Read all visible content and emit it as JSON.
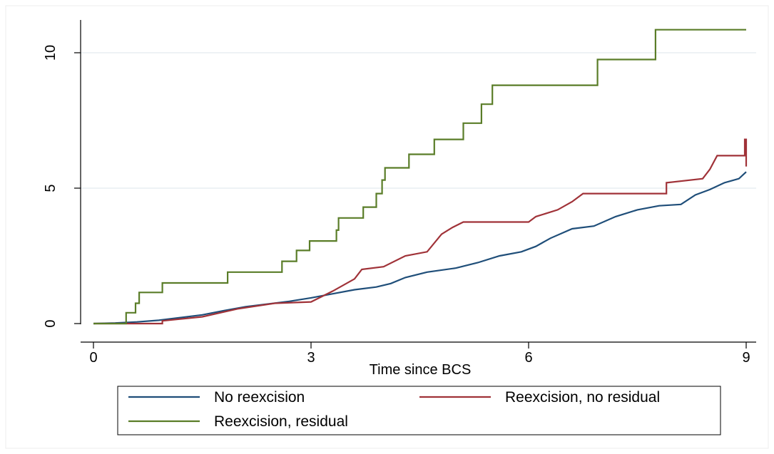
{
  "chart_data": {
    "type": "line",
    "step": true,
    "xlabel": "Time since BCS",
    "ylabel": "",
    "xlim": [
      0,
      9
    ],
    "ylim": [
      0,
      10
    ],
    "x_ticks": [
      "0",
      "3",
      "6",
      "9"
    ],
    "y_ticks": [
      "0",
      "5",
      "10"
    ],
    "grid": "horizontal",
    "legend_position": "bottom",
    "series": [
      {
        "name": "No reexcision",
        "color": "#1f4e79",
        "points": [
          [
            0,
            0
          ],
          [
            0.3,
            0.02
          ],
          [
            0.6,
            0.06
          ],
          [
            0.9,
            0.12
          ],
          [
            1.2,
            0.22
          ],
          [
            1.5,
            0.32
          ],
          [
            1.8,
            0.48
          ],
          [
            2.1,
            0.62
          ],
          [
            2.4,
            0.72
          ],
          [
            2.7,
            0.82
          ],
          [
            3.0,
            0.95
          ],
          [
            3.3,
            1.1
          ],
          [
            3.6,
            1.25
          ],
          [
            3.9,
            1.35
          ],
          [
            4.1,
            1.48
          ],
          [
            4.3,
            1.7
          ],
          [
            4.6,
            1.9
          ],
          [
            5.0,
            2.05
          ],
          [
            5.3,
            2.25
          ],
          [
            5.6,
            2.5
          ],
          [
            5.9,
            2.65
          ],
          [
            6.1,
            2.85
          ],
          [
            6.3,
            3.15
          ],
          [
            6.6,
            3.5
          ],
          [
            6.9,
            3.6
          ],
          [
            7.2,
            3.95
          ],
          [
            7.5,
            4.2
          ],
          [
            7.8,
            4.35
          ],
          [
            8.1,
            4.4
          ],
          [
            8.3,
            4.75
          ],
          [
            8.5,
            4.95
          ],
          [
            8.7,
            5.2
          ],
          [
            8.9,
            5.35
          ],
          [
            9.0,
            5.6
          ]
        ]
      },
      {
        "name": "Reexcision, no residual",
        "color": "#a03238",
        "points": [
          [
            0,
            0
          ],
          [
            0.95,
            0
          ],
          [
            0.95,
            0.1
          ],
          [
            1.5,
            0.25
          ],
          [
            2.0,
            0.55
          ],
          [
            2.5,
            0.75
          ],
          [
            3.0,
            0.8
          ],
          [
            3.3,
            1.2
          ],
          [
            3.6,
            1.65
          ],
          [
            3.7,
            2.0
          ],
          [
            4.0,
            2.1
          ],
          [
            4.3,
            2.5
          ],
          [
            4.6,
            2.65
          ],
          [
            4.8,
            3.3
          ],
          [
            4.95,
            3.55
          ],
          [
            5.1,
            3.75
          ],
          [
            6.0,
            3.75
          ],
          [
            6.1,
            3.95
          ],
          [
            6.4,
            4.2
          ],
          [
            6.6,
            4.5
          ],
          [
            6.75,
            4.8
          ],
          [
            7.9,
            4.8
          ],
          [
            7.9,
            5.2
          ],
          [
            8.4,
            5.35
          ],
          [
            8.5,
            5.7
          ],
          [
            8.6,
            6.2
          ],
          [
            8.98,
            6.2
          ],
          [
            8.98,
            6.8
          ],
          [
            9.0,
            6.8
          ],
          [
            9.0,
            5.8
          ]
        ]
      },
      {
        "name": "Reexcision, residual",
        "color": "#5a7d28",
        "points": [
          [
            0,
            0
          ],
          [
            0.45,
            0
          ],
          [
            0.45,
            0.4
          ],
          [
            0.58,
            0.4
          ],
          [
            0.58,
            0.75
          ],
          [
            0.63,
            0.75
          ],
          [
            0.63,
            1.15
          ],
          [
            0.95,
            1.15
          ],
          [
            0.95,
            1.5
          ],
          [
            1.85,
            1.5
          ],
          [
            1.85,
            1.9
          ],
          [
            2.6,
            1.9
          ],
          [
            2.6,
            2.3
          ],
          [
            2.8,
            2.3
          ],
          [
            2.8,
            2.7
          ],
          [
            2.98,
            2.7
          ],
          [
            2.98,
            3.05
          ],
          [
            3.35,
            3.05
          ],
          [
            3.35,
            3.45
          ],
          [
            3.38,
            3.45
          ],
          [
            3.38,
            3.9
          ],
          [
            3.72,
            3.9
          ],
          [
            3.72,
            4.3
          ],
          [
            3.9,
            4.3
          ],
          [
            3.9,
            4.8
          ],
          [
            3.98,
            4.8
          ],
          [
            3.98,
            5.3
          ],
          [
            4.02,
            5.3
          ],
          [
            4.02,
            5.75
          ],
          [
            4.35,
            5.75
          ],
          [
            4.35,
            6.25
          ],
          [
            4.7,
            6.25
          ],
          [
            4.7,
            6.8
          ],
          [
            5.1,
            6.8
          ],
          [
            5.1,
            7.4
          ],
          [
            5.35,
            7.4
          ],
          [
            5.35,
            8.1
          ],
          [
            5.5,
            8.1
          ],
          [
            5.5,
            8.8
          ],
          [
            6.95,
            8.8
          ],
          [
            6.95,
            9.75
          ],
          [
            7.75,
            9.75
          ],
          [
            7.75,
            10.85
          ],
          [
            9.0,
            10.85
          ]
        ]
      }
    ]
  }
}
